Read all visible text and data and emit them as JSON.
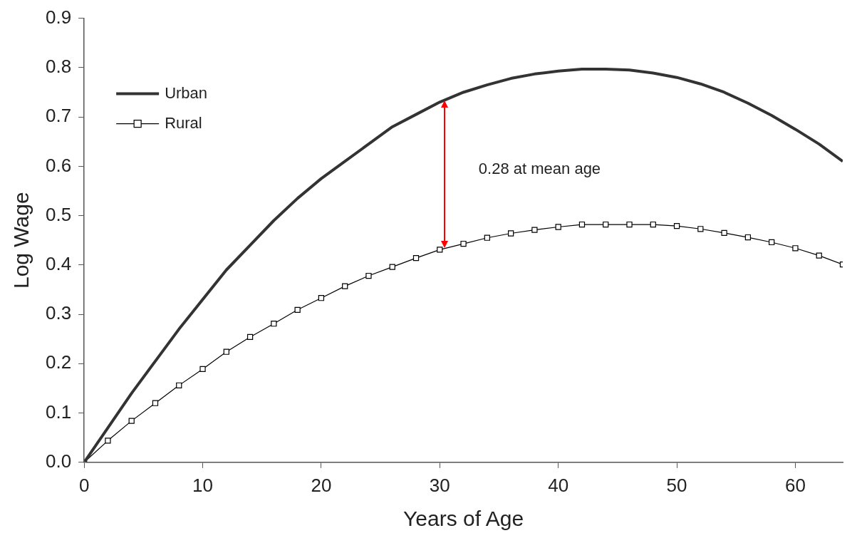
{
  "chart_data": {
    "type": "line",
    "xlabel": "Years of Age",
    "ylabel": "Log Wage",
    "x": [
      0,
      2,
      4,
      6,
      8,
      10,
      12,
      14,
      16,
      18,
      20,
      22,
      24,
      26,
      28,
      30,
      32,
      34,
      36,
      38,
      40,
      42,
      44,
      46,
      48,
      50,
      52,
      54,
      56,
      58,
      60,
      62,
      64
    ],
    "series": [
      {
        "name": "Urban",
        "color": "#333333",
        "marker": "none",
        "values": [
          0,
          0.07,
          0.14,
          0.205,
          0.27,
          0.33,
          0.39,
          0.44,
          0.49,
          0.535,
          0.575,
          0.61,
          0.645,
          0.68,
          0.705,
          0.73,
          0.75,
          0.765,
          0.778,
          0.787,
          0.793,
          0.797,
          0.797,
          0.795,
          0.789,
          0.78,
          0.767,
          0.75,
          0.728,
          0.703,
          0.675,
          0.645,
          0.61
        ]
      },
      {
        "name": "Rural",
        "color": "#000000",
        "marker": "square",
        "values": [
          0,
          0.044,
          0.084,
          0.12,
          0.156,
          0.189,
          0.224,
          0.254,
          0.281,
          0.309,
          0.333,
          0.357,
          0.378,
          0.396,
          0.414,
          0.431,
          0.443,
          0.455,
          0.464,
          0.471,
          0.477,
          0.482,
          0.482,
          0.482,
          0.482,
          0.479,
          0.473,
          0.465,
          0.456,
          0.446,
          0.434,
          0.419,
          0.401
        ]
      }
    ],
    "xlim": [
      0,
      64
    ],
    "xticks": [
      0,
      10,
      20,
      30,
      40,
      50,
      60
    ],
    "ylim": [
      0,
      0.9
    ],
    "yticks": [
      {
        "value": 0,
        "label": "0.0"
      },
      0.1,
      0.2,
      0.3,
      0.4,
      0.5,
      0.6,
      0.7,
      0.8,
      0.9
    ],
    "annotations": [
      "0.28 at mean age"
    ],
    "legend": "top left",
    "grid": false,
    "line_style": "solid"
  }
}
